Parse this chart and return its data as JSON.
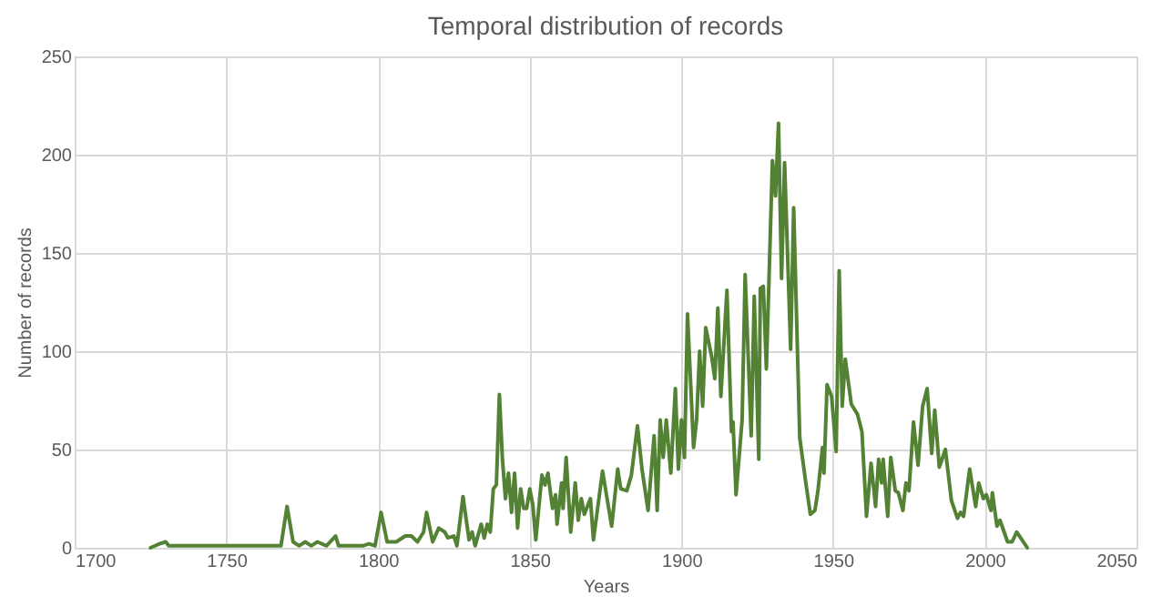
{
  "chart_data": {
    "type": "line",
    "title": "Temporal distribution of records",
    "xlabel": "Years",
    "ylabel": "Number of records",
    "xlim": [
      1700,
      2050
    ],
    "xticks": [
      1700,
      1750,
      1800,
      1850,
      1900,
      1950,
      2000,
      2050
    ],
    "ylim": [
      0,
      250
    ],
    "yticks": [
      0,
      50,
      100,
      150,
      200,
      250
    ],
    "grid": true,
    "series": [
      {
        "color": "#548235",
        "x": [
          1725,
          1728,
          1730,
          1731,
          1735,
          1768,
          1770,
          1772,
          1774,
          1776,
          1778,
          1780,
          1783,
          1786,
          1787,
          1795,
          1797,
          1799,
          1801,
          1803,
          1806,
          1809,
          1811,
          1813,
          1815,
          1816,
          1818,
          1820,
          1822,
          1823,
          1825,
          1826,
          1828,
          1830,
          1831,
          1832,
          1834,
          1835,
          1836,
          1837,
          1838,
          1839,
          1840,
          1841,
          1842,
          1843,
          1844,
          1845,
          1846,
          1847,
          1848,
          1849,
          1850,
          1851,
          1852,
          1854,
          1855,
          1856,
          1857.5,
          1858.5,
          1859,
          1860.5,
          1861,
          1862,
          1863.5,
          1865,
          1866,
          1867,
          1868,
          1870,
          1871,
          1874,
          1877,
          1879,
          1880,
          1882,
          1883.5,
          1885.5,
          1887,
          1889,
          1891,
          1892,
          1893,
          1894,
          1895,
          1896.5,
          1898,
          1899,
          1900,
          1901,
          1902,
          1904,
          1905,
          1906,
          1907,
          1908,
          1910,
          1911,
          1912,
          1913,
          1915,
          1916.5,
          1917,
          1918,
          1920,
          1921,
          1923,
          1924,
          1925.5,
          1926,
          1927,
          1928,
          1930,
          1931,
          1932,
          1933,
          1934,
          1936,
          1937,
          1939,
          1941,
          1942.5,
          1944,
          1945,
          1946.5,
          1947,
          1948,
          1949.5,
          1951,
          1952,
          1953,
          1954,
          1956,
          1958,
          1959.5,
          1961,
          1962.5,
          1964,
          1965,
          1966,
          1966.5,
          1968,
          1969,
          1970.5,
          1971.5,
          1973,
          1974,
          1975,
          1976.5,
          1978,
          1979.5,
          1981,
          1982.5,
          1983.5,
          1985,
          1987,
          1989,
          1991,
          1992,
          1993,
          1995,
          1997,
          1998,
          1999.5,
          2000.5,
          2002,
          2002.5,
          2004,
          2005,
          2007.5,
          2009,
          2010.5,
          2014
        ],
        "values": [
          0,
          2,
          3,
          1,
          1,
          1,
          21,
          3,
          1,
          3,
          1,
          3,
          1,
          6,
          1,
          1,
          2,
          1,
          18,
          3,
          3,
          6,
          6,
          3,
          8,
          18,
          3,
          10,
          8,
          5,
          6,
          1,
          26,
          4,
          8,
          1,
          12,
          5,
          12,
          8,
          30,
          32,
          78,
          45,
          25,
          38,
          18,
          38,
          10,
          30,
          20,
          20,
          30,
          22,
          4,
          37,
          32,
          38,
          20,
          27,
          12,
          33,
          20,
          46,
          8,
          33,
          14,
          25,
          17,
          25,
          4,
          39,
          11,
          40,
          30,
          29,
          37,
          62,
          40,
          19,
          57,
          19,
          65,
          46,
          65,
          38,
          81,
          40,
          65,
          46,
          119,
          51,
          65,
          100,
          72,
          112,
          97,
          86,
          122,
          77,
          131,
          59,
          64,
          27,
          65,
          139,
          57,
          128,
          45,
          132,
          133,
          91,
          197,
          179,
          216,
          137,
          196,
          101,
          173,
          56,
          33,
          17,
          19,
          29,
          51,
          38,
          83,
          77,
          49,
          141,
          72,
          96,
          73,
          68,
          59,
          16,
          43,
          21,
          45,
          33,
          45,
          16,
          46,
          29,
          28,
          19,
          33,
          29,
          64,
          42,
          72,
          81,
          48,
          70,
          41,
          50,
          24,
          15,
          18,
          16,
          40,
          21,
          33,
          25,
          27,
          19,
          28,
          11,
          14,
          3,
          3,
          8,
          0
        ]
      }
    ]
  }
}
